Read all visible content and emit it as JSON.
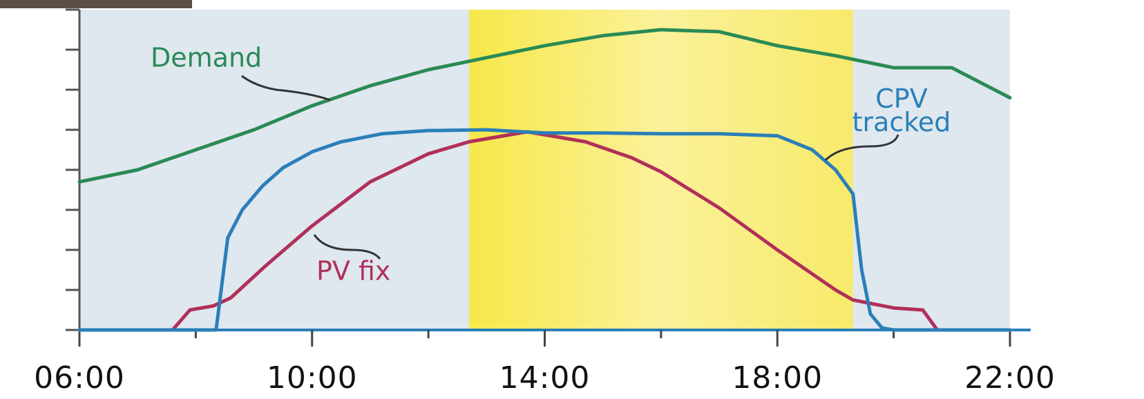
{
  "chart_data": {
    "type": "line",
    "xlim": [
      6,
      22
    ],
    "xticks": [
      {
        "value": 6,
        "label": "06:00"
      },
      {
        "value": 10,
        "label": "10:00"
      },
      {
        "value": 14,
        "label": "14:00"
      },
      {
        "value": 18,
        "label": "18:00"
      },
      {
        "value": 22,
        "label": "22:00"
      }
    ],
    "xminor_ticks": [
      8,
      12,
      16,
      20
    ],
    "ylim": [
      0,
      8
    ],
    "yticks": [
      0,
      1,
      2,
      3,
      4,
      5,
      6,
      7,
      8
    ],
    "show_ytick_labels": false,
    "highlight_band": [
      12.7,
      19.3
    ],
    "series": [
      {
        "name": "Demand",
        "color": "#2a8a55",
        "x": [
          6,
          7,
          8,
          9,
          10,
          11,
          12,
          13,
          14,
          15,
          16,
          17,
          18,
          19,
          20,
          21,
          22
        ],
        "values": [
          3.7,
          4.0,
          4.5,
          5.0,
          5.6,
          6.1,
          6.5,
          6.8,
          7.1,
          7.35,
          7.5,
          7.45,
          7.1,
          6.85,
          6.55,
          6.55,
          5.8
        ]
      },
      {
        "name": "CPV tracked",
        "color": "#2a7fb8",
        "x": [
          6,
          8.35,
          8.55,
          8.8,
          9.15,
          9.5,
          10,
          10.5,
          11.2,
          12,
          13,
          14,
          15,
          16,
          17,
          18,
          18.6,
          19,
          19.3,
          19.45,
          19.6,
          19.8,
          20,
          22
        ],
        "values": [
          0,
          0,
          2.3,
          3.0,
          3.6,
          4.05,
          4.45,
          4.7,
          4.9,
          4.98,
          5.0,
          4.92,
          4.92,
          4.9,
          4.9,
          4.85,
          4.5,
          4.0,
          3.4,
          1.5,
          0.4,
          0.05,
          0,
          0
        ]
      },
      {
        "name": "PV fix",
        "color": "#b0305a",
        "x": [
          7.6,
          7.9,
          8.3,
          8.6,
          9.2,
          10,
          11,
          12,
          12.7,
          13.7,
          14.7,
          15.5,
          16,
          17,
          18,
          19,
          19.3,
          20,
          20.5,
          20.75
        ],
        "values": [
          0,
          0.5,
          0.6,
          0.8,
          1.6,
          2.6,
          3.7,
          4.4,
          4.7,
          4.95,
          4.7,
          4.3,
          3.95,
          3.05,
          2.0,
          1.0,
          0.75,
          0.55,
          0.5,
          0
        ]
      }
    ]
  }
}
